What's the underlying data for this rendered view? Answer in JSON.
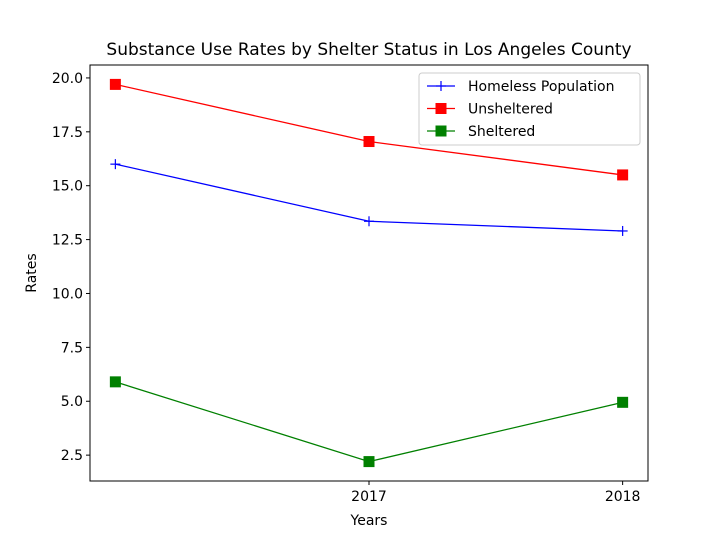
{
  "chart_data": {
    "type": "line",
    "title": "Substance Use Rates by Shelter Status in Los Angeles County",
    "xlabel": "Years",
    "ylabel": "Rates",
    "x_tick_labels": [
      "2017",
      "2018"
    ],
    "x_tick_values": [
      2017,
      2018
    ],
    "y_ticks": [
      "2.5",
      "5.0",
      "7.5",
      "10.0",
      "12.5",
      "15.0",
      "17.5",
      "20.0"
    ],
    "y_tick_values": [
      2.5,
      5.0,
      7.5,
      10.0,
      12.5,
      15.0,
      17.5,
      20.0
    ],
    "xlim": [
      2015.9,
      2018.1
    ],
    "ylim": [
      1.3,
      20.6
    ],
    "grid": false,
    "legend_position": "top-right",
    "x": [
      2016,
      2017,
      2018
    ],
    "series": [
      {
        "name": "Homeless Population",
        "values": [
          16.0,
          13.35,
          12.9
        ],
        "color": "#0000ff",
        "marker": "plus"
      },
      {
        "name": "Unsheltered",
        "values": [
          19.7,
          17.05,
          15.5
        ],
        "color": "#ff0000",
        "marker": "square"
      },
      {
        "name": "Sheltered",
        "values": [
          5.9,
          2.2,
          4.95
        ],
        "color": "#008000",
        "marker": "square"
      }
    ]
  }
}
